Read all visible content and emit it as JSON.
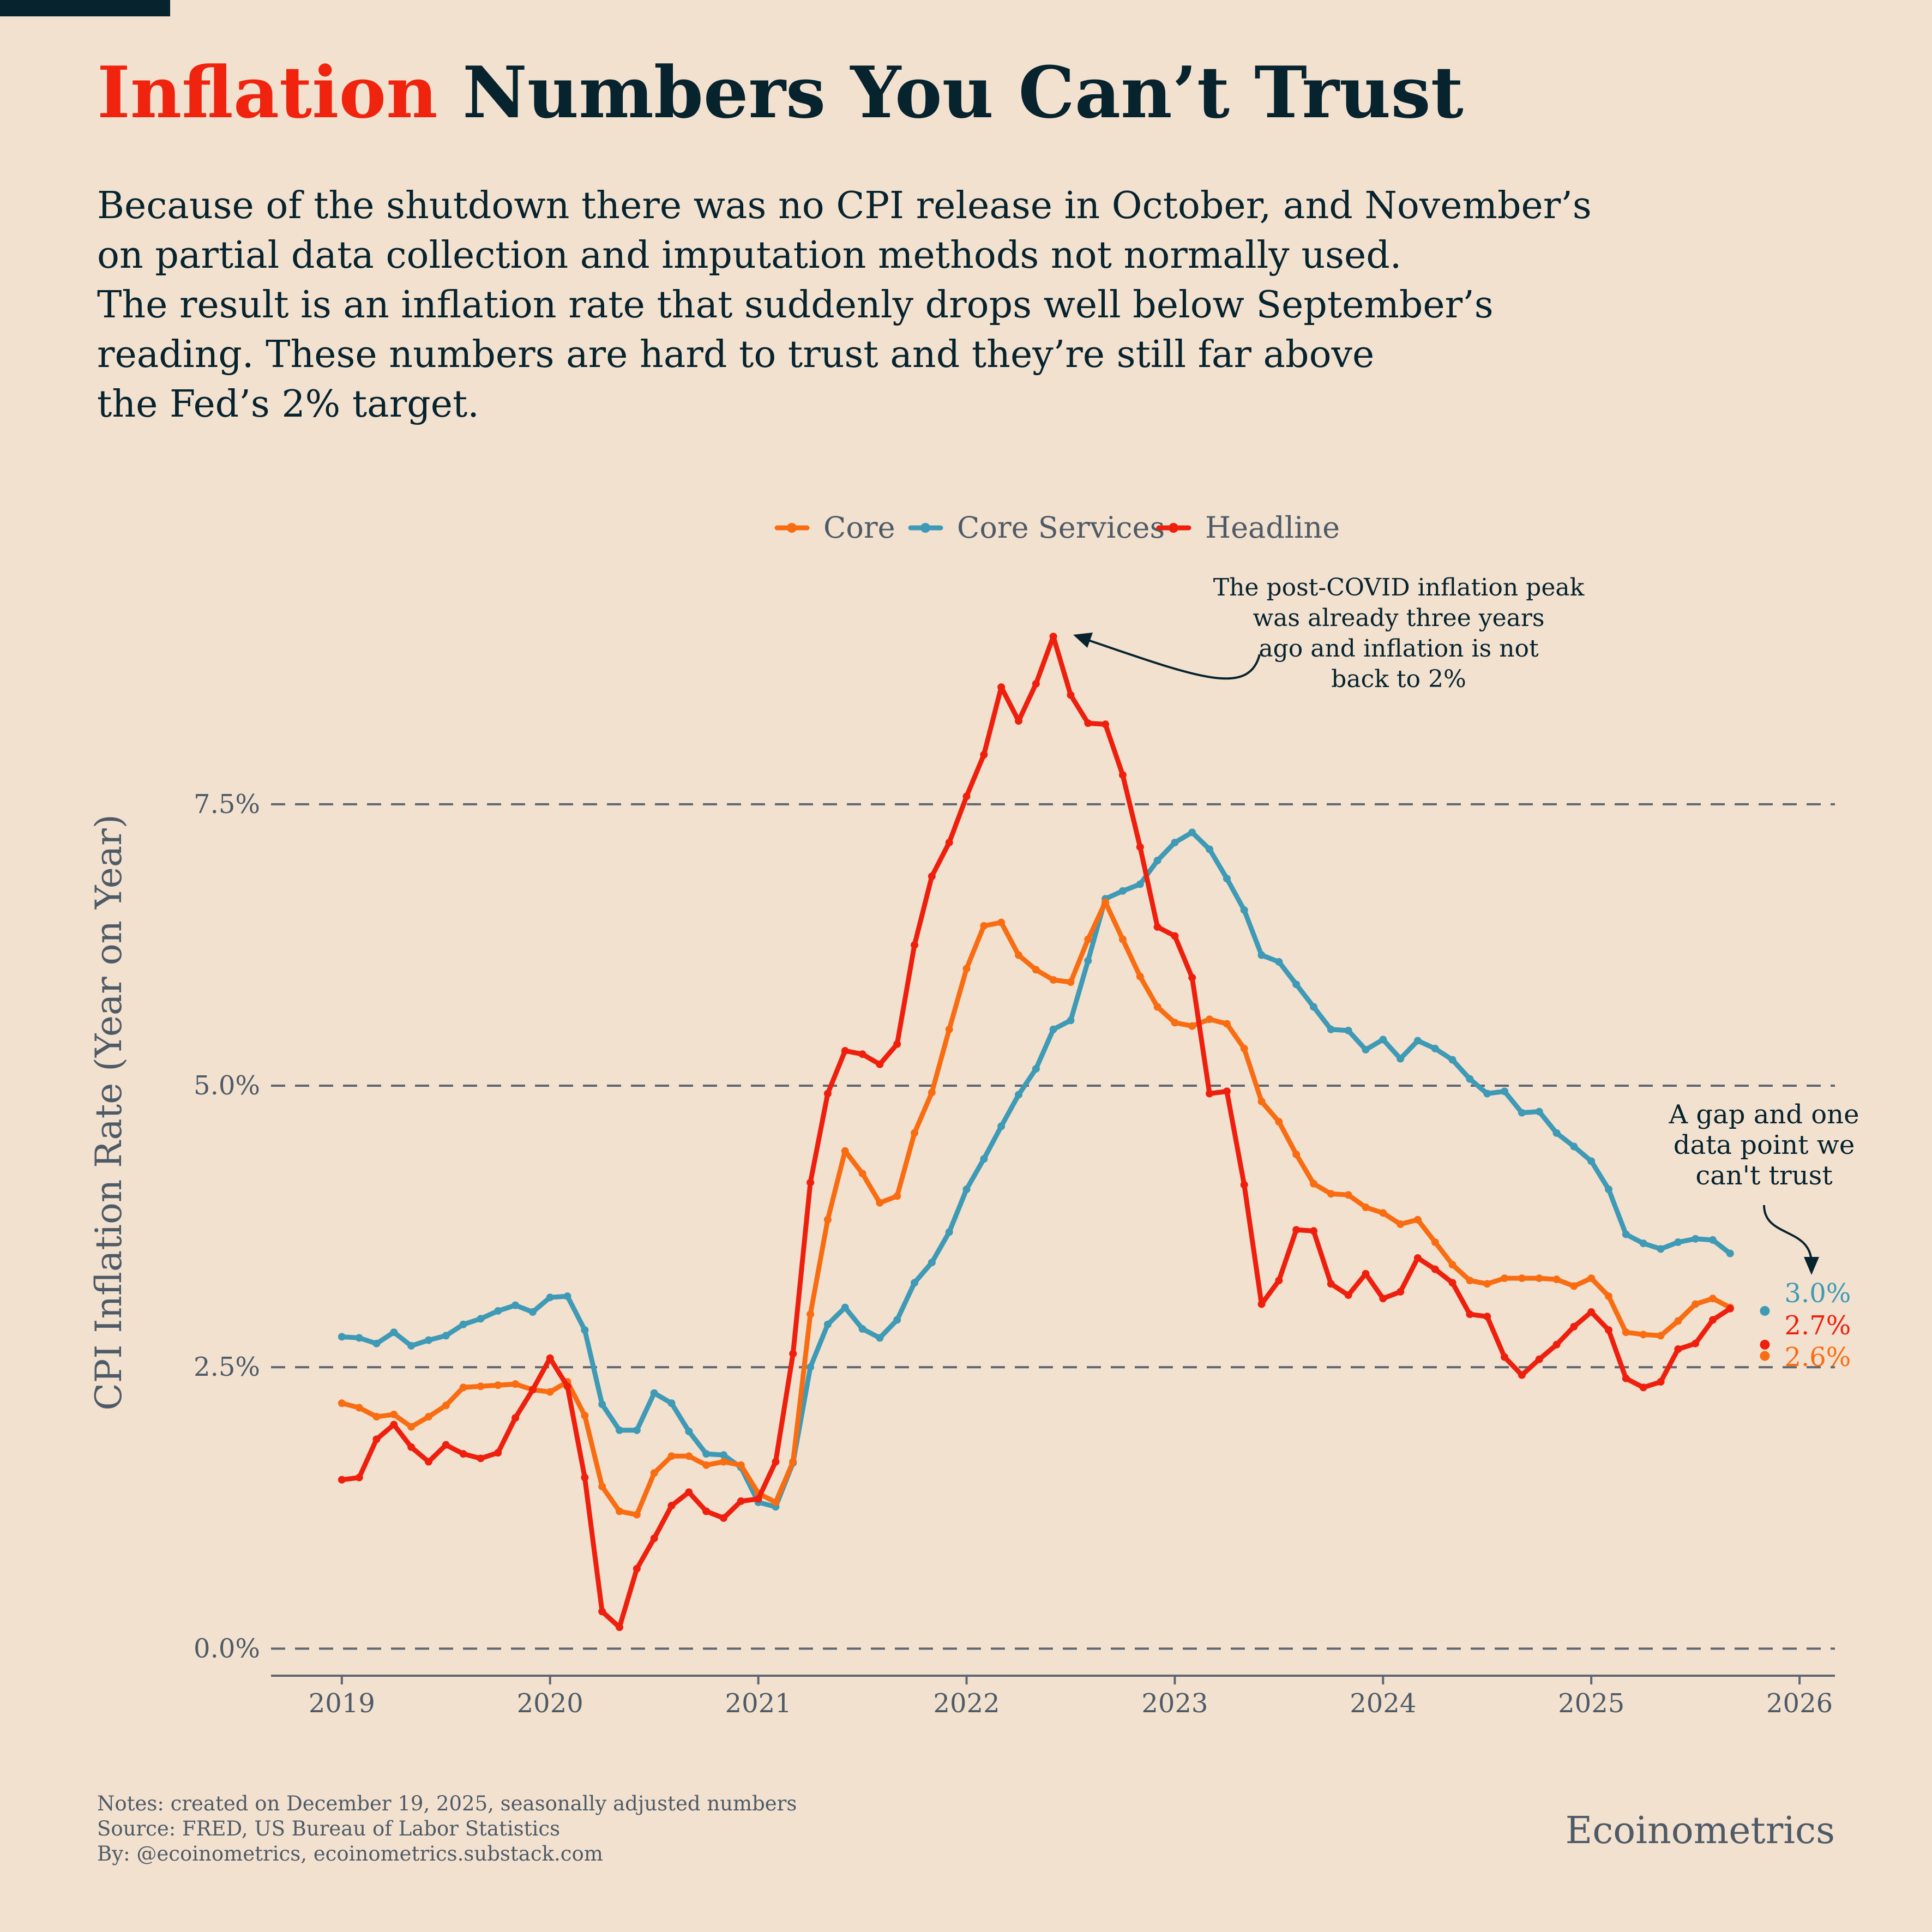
{
  "header": {
    "title_highlight": "Inflation",
    "title_rest": " Numbers You Can’t Trust",
    "subtitle": "Because of the shutdown there was no CPI release in October, and November’s\non partial data collection and imputation methods not normally used.\nThe result is an inflation rate that suddenly drops well below September’s\nreading. These numbers are hard to trust and they’re still far above\nthe Fed’s 2% target."
  },
  "footer": {
    "notes": "Notes: created on December 19, 2025, seasonally adjusted numbers",
    "source": "Source: FRED, US Bureau of Labor Statistics",
    "by": "By: @ecoinometrics, ecoinometrics.substack.com",
    "brand": "Ecoinometrics"
  },
  "colors": {
    "background": "#f3e1d0",
    "core": "#f96d12",
    "core_services": "#3e9ab5",
    "headline": "#ee200d",
    "text_dark": "#06232e",
    "text_muted": "#4e5b66"
  },
  "chart_data": {
    "type": "line",
    "title": "",
    "xlabel": "",
    "ylabel": "CPI Inflation Rate (Year on Year)",
    "x_start": "2019-01",
    "x_ticks": [
      2019,
      2020,
      2021,
      2022,
      2023,
      2024,
      2025,
      2026
    ],
    "xlim": [
      2018.66,
      2026.17
    ],
    "ylim": [
      -0.25,
      9.8
    ],
    "y_ticks": [
      0,
      2.5,
      5.0,
      7.5
    ],
    "y_tick_labels": [
      "0.0%",
      "2.5%",
      "5.0%",
      "7.5%"
    ],
    "grid": "horizontal dashed",
    "legend_position": "top-center",
    "series": [
      {
        "name": "Core",
        "color": "#f96d12",
        "values": [
          2.18,
          2.14,
          2.06,
          2.08,
          1.97,
          2.06,
          2.16,
          2.32,
          2.33,
          2.34,
          2.35,
          2.3,
          2.28,
          2.37,
          2.07,
          1.44,
          1.22,
          1.19,
          1.56,
          1.71,
          1.71,
          1.63,
          1.66,
          1.63,
          1.38,
          1.3,
          1.66,
          2.97,
          3.81,
          4.42,
          4.22,
          3.96,
          4.02,
          4.58,
          4.94,
          5.5,
          6.04,
          6.42,
          6.45,
          6.16,
          6.03,
          5.94,
          5.92,
          6.3,
          6.63,
          6.3,
          5.97,
          5.7,
          5.56,
          5.53,
          5.59,
          5.55,
          5.33,
          4.86,
          4.68,
          4.39,
          4.13,
          4.04,
          4.03,
          3.92,
          3.87,
          3.77,
          3.81,
          3.61,
          3.41,
          3.27,
          3.24,
          3.29,
          3.29,
          3.29,
          3.28,
          3.22,
          3.29,
          3.13,
          2.81,
          2.79,
          2.78,
          2.91,
          3.06,
          3.11,
          3.03
        ]
      },
      {
        "name": "Core Services",
        "color": "#3e9ab5",
        "values": [
          2.77,
          2.76,
          2.71,
          2.81,
          2.69,
          2.74,
          2.78,
          2.88,
          2.93,
          3.0,
          3.05,
          2.99,
          3.12,
          3.13,
          2.83,
          2.17,
          1.94,
          1.94,
          2.27,
          2.18,
          1.93,
          1.73,
          1.72,
          1.61,
          1.3,
          1.26,
          1.65,
          2.5,
          2.88,
          3.03,
          2.84,
          2.76,
          2.92,
          3.25,
          3.43,
          3.7,
          4.08,
          4.35,
          4.64,
          4.92,
          5.15,
          5.5,
          5.58,
          6.11,
          6.66,
          6.73,
          6.79,
          7.0,
          7.16,
          7.25,
          7.1,
          6.84,
          6.56,
          6.16,
          6.1,
          5.9,
          5.7,
          5.5,
          5.49,
          5.32,
          5.41,
          5.24,
          5.4,
          5.33,
          5.23,
          5.06,
          4.93,
          4.95,
          4.76,
          4.77,
          4.58,
          4.46,
          4.33,
          4.08,
          3.68,
          3.6,
          3.55,
          3.61,
          3.64,
          3.63,
          3.51
        ]
      },
      {
        "name": "Headline",
        "color": "#ee200d",
        "values": [
          1.5,
          1.52,
          1.86,
          1.99,
          1.79,
          1.66,
          1.81,
          1.73,
          1.69,
          1.74,
          2.05,
          2.3,
          2.58,
          2.33,
          1.52,
          0.33,
          0.19,
          0.71,
          0.98,
          1.27,
          1.39,
          1.22,
          1.16,
          1.31,
          1.33,
          1.66,
          2.62,
          4.14,
          4.93,
          5.31,
          5.28,
          5.19,
          5.37,
          6.25,
          6.86,
          7.16,
          7.57,
          7.94,
          8.54,
          8.24,
          8.57,
          8.99,
          8.47,
          8.22,
          8.21,
          7.76,
          7.12,
          6.41,
          6.33,
          5.96,
          4.93,
          4.95,
          4.12,
          3.06,
          3.27,
          3.72,
          3.71,
          3.24,
          3.14,
          3.33,
          3.11,
          3.17,
          3.47,
          3.37,
          3.25,
          2.97,
          2.95,
          2.59,
          2.43,
          2.57,
          2.7,
          2.86,
          2.99,
          2.83,
          2.4,
          2.32,
          2.37,
          2.66,
          2.71,
          2.92,
          3.02
        ]
      }
    ],
    "untrusted_points": [
      {
        "series": "Core Services",
        "value": 3.0,
        "label": "3.0%",
        "date": "2025-11"
      },
      {
        "series": "Headline",
        "value": 2.7,
        "label": "2.7%",
        "date": "2025-11"
      },
      {
        "series": "Core",
        "value": 2.6,
        "label": "2.6%",
        "date": "2025-11"
      }
    ],
    "annotations": {
      "peak": [
        "The post-COVID inflation peak",
        "was already three years",
        "ago and inflation is not",
        "back to 2%"
      ],
      "gap": [
        "A gap and one",
        "data point we",
        "can't trust"
      ]
    }
  }
}
